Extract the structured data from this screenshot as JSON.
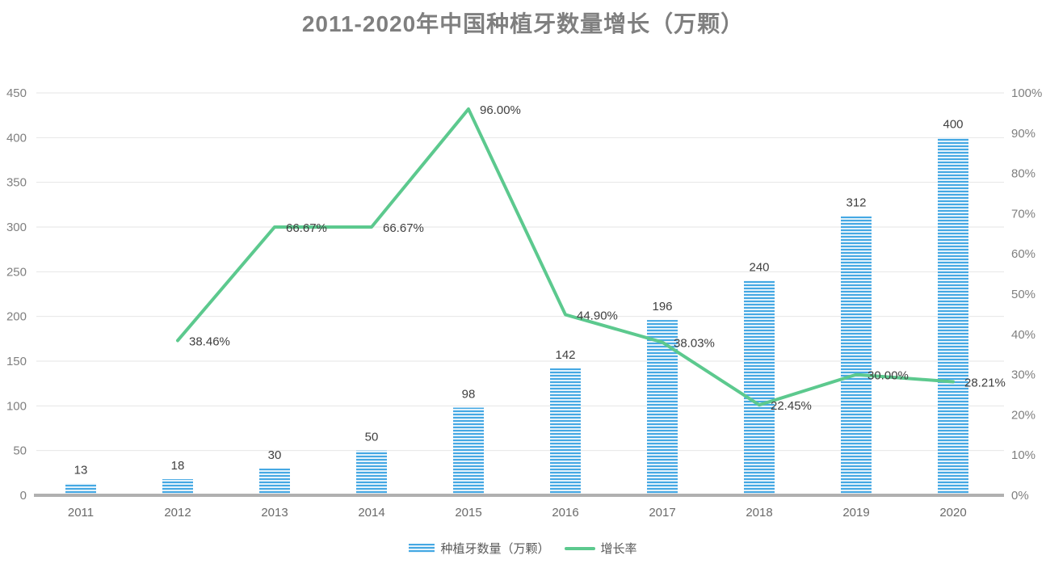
{
  "title": "2011-2020年中国种植牙数量增长（万颗）",
  "legend": {
    "bar_label": "种植牙数量（万颗）",
    "line_label": "增长率"
  },
  "colors": {
    "bar_stripe_blue": "#45a8e3",
    "bar_stripe_light": "#e3f2fb",
    "line_green": "#5cc98e",
    "title_text": "#7f7f7f",
    "axis_tick_text": "#7f7f7f",
    "data_label_text": "#404040",
    "x_axis_line": "#b0b0b0",
    "gridline": "#e6e6e6"
  },
  "chart_data": {
    "type": "bar",
    "title": "2011-2020年中国种植牙数量增长（万颗）",
    "categories": [
      "2011",
      "2012",
      "2013",
      "2014",
      "2015",
      "2016",
      "2017",
      "2018",
      "2019",
      "2020"
    ],
    "series": [
      {
        "name": "种植牙数量（万颗）",
        "type": "bar",
        "axis": "left",
        "values": [
          13,
          18,
          30,
          50,
          98,
          142,
          196,
          240,
          312,
          400
        ],
        "labels": [
          "13",
          "18",
          "30",
          "50",
          "98",
          "142",
          "196",
          "240",
          "312",
          "400"
        ]
      },
      {
        "name": "增长率",
        "type": "line",
        "axis": "right",
        "values": [
          null,
          38.46,
          66.67,
          66.67,
          96.0,
          44.9,
          38.03,
          22.45,
          30.0,
          28.21
        ],
        "labels": [
          null,
          "38.46%",
          "66.67%",
          "66.67%",
          "96.00%",
          "44.90%",
          "38.03%",
          "22.45%",
          "30.00%",
          "28.21%"
        ]
      }
    ],
    "left_axis": {
      "min": 0,
      "max": 450,
      "step": 50,
      "tick_labels": [
        "0",
        "50",
        "100",
        "150",
        "200",
        "250",
        "300",
        "350",
        "400",
        "450"
      ]
    },
    "right_axis": {
      "min": 0,
      "max": 100,
      "step": 10,
      "tick_labels": [
        "0%",
        "10%",
        "20%",
        "30%",
        "40%",
        "50%",
        "60%",
        "70%",
        "80%",
        "90%",
        "100%"
      ]
    },
    "grid": true,
    "legend_position": "bottom"
  }
}
